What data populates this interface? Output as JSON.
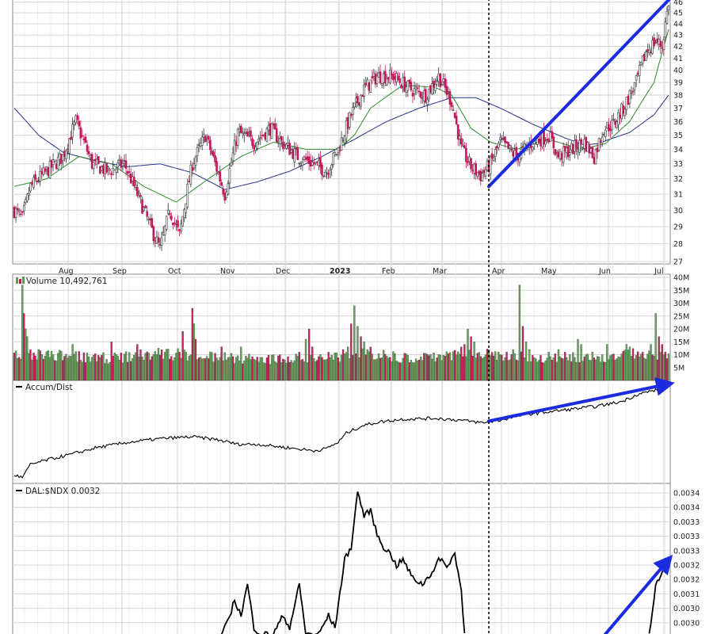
{
  "colors": {
    "up": "#5a9c4e",
    "down": "#c2185b",
    "volUp": "#6aa55d",
    "volDown": "#c8265f",
    "ma_short": "#2e8b2e",
    "ma_long": "#26338a",
    "arrow": "#1a2be0",
    "grid": "#d4d4d4",
    "bg": "#ffffff",
    "line": "#000000"
  },
  "chart_data": [
    {
      "type": "candlestick",
      "title": "",
      "x_labels": [
        "Aug",
        "Sep",
        "Oct",
        "Nov",
        "Dec",
        "2023",
        "Feb",
        "Mar",
        "Apr",
        "May",
        "Jun",
        "Jul"
      ],
      "y_ticks": [
        "46",
        "45",
        "44",
        "43",
        "42",
        "41",
        "40",
        "39",
        "38",
        "37",
        "36",
        "35",
        "34",
        "33",
        "32",
        "31",
        "30",
        "29",
        "28",
        "27"
      ],
      "y_scale": "log",
      "ylim": [
        27,
        46.2
      ],
      "close_anchors": [
        [
          0,
          30
        ],
        [
          5,
          29.5
        ],
        [
          10,
          31.5
        ],
        [
          20,
          32.5
        ],
        [
          30,
          33.5
        ],
        [
          38,
          36
        ],
        [
          48,
          33
        ],
        [
          58,
          32.5
        ],
        [
          68,
          33
        ],
        [
          74,
          31.5
        ],
        [
          80,
          30
        ],
        [
          84,
          29
        ],
        [
          90,
          27.7
        ],
        [
          96,
          30
        ],
        [
          102,
          28.5
        ],
        [
          110,
          33
        ],
        [
          118,
          35
        ],
        [
          124,
          33
        ],
        [
          130,
          31
        ],
        [
          138,
          35.2
        ],
        [
          148,
          34.5
        ],
        [
          158,
          35.5
        ],
        [
          165,
          34.5
        ],
        [
          175,
          33.5
        ],
        [
          185,
          33
        ],
        [
          193,
          32.5
        ],
        [
          200,
          34
        ],
        [
          208,
          36.5
        ],
        [
          216,
          38.5
        ],
        [
          224,
          39.5
        ],
        [
          234,
          39.5
        ],
        [
          244,
          38.5
        ],
        [
          254,
          38
        ],
        [
          262,
          39.5
        ],
        [
          270,
          37.5
        ],
        [
          276,
          34
        ],
        [
          282,
          32.8
        ],
        [
          288,
          32.2
        ],
        [
          294,
          33
        ],
        [
          300,
          34.5
        ],
        [
          310,
          33.5
        ],
        [
          320,
          34.5
        ],
        [
          330,
          35
        ],
        [
          336,
          33.5
        ],
        [
          344,
          34
        ],
        [
          352,
          34.5
        ],
        [
          358,
          33.5
        ],
        [
          364,
          35.5
        ],
        [
          370,
          35.8
        ],
        [
          376,
          37
        ],
        [
          384,
          39
        ],
        [
          390,
          41.5
        ],
        [
          396,
          42.5
        ],
        [
          400,
          42
        ],
        [
          404,
          46
        ]
      ],
      "ma_short_anchors": [
        [
          0,
          31.5
        ],
        [
          20,
          32
        ],
        [
          40,
          33.5
        ],
        [
          60,
          33
        ],
        [
          80,
          31.5
        ],
        [
          100,
          30.5
        ],
        [
          120,
          32
        ],
        [
          140,
          33.5
        ],
        [
          160,
          34.5
        ],
        [
          180,
          34
        ],
        [
          200,
          34
        ],
        [
          210,
          35
        ],
        [
          220,
          37
        ],
        [
          240,
          38.8
        ],
        [
          260,
          38.6
        ],
        [
          270,
          38
        ],
        [
          282,
          35.5
        ],
        [
          294,
          34.5
        ],
        [
          310,
          34
        ],
        [
          330,
          34.7
        ],
        [
          350,
          34
        ],
        [
          365,
          34.4
        ],
        [
          380,
          36
        ],
        [
          395,
          39
        ],
        [
          404,
          43.5
        ]
      ],
      "ma_long_anchors": [
        [
          0,
          37
        ],
        [
          15,
          35
        ],
        [
          30,
          33.8
        ],
        [
          50,
          33.2
        ],
        [
          70,
          32.8
        ],
        [
          90,
          33
        ],
        [
          110,
          32.4
        ],
        [
          130,
          31.3
        ],
        [
          150,
          31.8
        ],
        [
          170,
          32.5
        ],
        [
          190,
          33.5
        ],
        [
          210,
          34.7
        ],
        [
          230,
          36
        ],
        [
          250,
          37
        ],
        [
          270,
          37.8
        ],
        [
          285,
          37.8
        ],
        [
          300,
          37
        ],
        [
          320,
          35.8
        ],
        [
          340,
          34.8
        ],
        [
          352,
          34.3
        ],
        [
          360,
          34.4
        ],
        [
          380,
          35.2
        ],
        [
          395,
          36.5
        ],
        [
          404,
          38
        ]
      ],
      "arrow": {
        "from": [
          293,
          31.5
        ],
        "to": [
          404,
          46.2
        ]
      },
      "event_marker_bar": 293
    },
    {
      "type": "bar",
      "title": "Volume 10,492,761",
      "y_ticks": [
        "40M",
        "35M",
        "30M",
        "25M",
        "20M",
        "15M",
        "10M",
        "5M"
      ],
      "ylim": [
        0,
        40
      ],
      "base_anchors": [
        [
          0,
          10
        ],
        [
          30,
          9.5
        ],
        [
          60,
          8.5
        ],
        [
          90,
          10.5
        ],
        [
          120,
          9.5
        ],
        [
          150,
          8
        ],
        [
          180,
          8.5
        ],
        [
          200,
          9
        ],
        [
          215,
          11
        ],
        [
          240,
          8.5
        ],
        [
          270,
          9.5
        ],
        [
          290,
          10
        ],
        [
          310,
          9
        ],
        [
          330,
          8.5
        ],
        [
          360,
          9
        ],
        [
          380,
          10
        ],
        [
          404,
          9
        ]
      ],
      "spikes": {
        "5": 37,
        "6": 26,
        "7": 20,
        "8": 17,
        "15": 12,
        "36": 14,
        "60": 15,
        "76": 14,
        "104": 19,
        "106": 11,
        "110": 28,
        "111": 22,
        "112": 16,
        "128": 13,
        "140": 13,
        "160": 10,
        "176": 11,
        "180": 16,
        "182": 20,
        "184": 13,
        "203": 12,
        "206": 13,
        "208": 22,
        "210": 29,
        "212": 21,
        "214": 17,
        "216": 15,
        "218": 12,
        "276": 13,
        "278": 14,
        "280": 20,
        "282": 17,
        "284": 15,
        "296": 9.5,
        "300": 10,
        "304": 11,
        "308": 12,
        "312": 37,
        "314": 21,
        "316": 15,
        "318": 12,
        "330": 11,
        "336": 12,
        "340": 11,
        "348": 16,
        "350": 14,
        "366": 14,
        "378": 14,
        "380": 13,
        "393": 14,
        "396": 26,
        "398": 17,
        "400": 14,
        "402": 11
      },
      "down_bars": [
        0,
        3,
        6,
        12,
        18,
        25,
        30,
        31,
        40,
        44,
        50,
        54,
        60,
        61,
        66,
        72,
        78,
        84,
        90,
        91,
        96,
        102,
        104,
        110,
        114,
        120,
        128,
        135,
        141,
        147,
        150,
        156,
        164,
        170,
        176,
        178,
        182,
        184,
        188,
        194,
        200,
        203,
        209,
        214,
        220,
        226,
        232,
        238,
        244,
        250,
        255,
        261,
        266,
        272,
        276,
        278,
        282,
        283,
        288,
        296,
        304,
        310,
        314,
        320,
        326,
        332,
        338,
        344,
        352,
        358,
        364,
        370,
        376,
        382,
        388,
        394,
        398,
        402
      ]
    },
    {
      "type": "line",
      "title": "Accum/Dist",
      "anchors": [
        [
          0,
          0.05
        ],
        [
          5,
          0.02
        ],
        [
          10,
          0.16
        ],
        [
          20,
          0.21
        ],
        [
          35,
          0.27
        ],
        [
          50,
          0.34
        ],
        [
          70,
          0.4
        ],
        [
          90,
          0.44
        ],
        [
          110,
          0.46
        ],
        [
          125,
          0.43
        ],
        [
          138,
          0.38
        ],
        [
          150,
          0.38
        ],
        [
          170,
          0.34
        ],
        [
          185,
          0.31
        ],
        [
          192,
          0.33
        ],
        [
          200,
          0.4
        ],
        [
          205,
          0.5
        ],
        [
          215,
          0.58
        ],
        [
          225,
          0.62
        ],
        [
          240,
          0.65
        ],
        [
          260,
          0.66
        ],
        [
          275,
          0.64
        ],
        [
          290,
          0.61
        ],
        [
          300,
          0.64
        ],
        [
          315,
          0.7
        ],
        [
          330,
          0.73
        ],
        [
          345,
          0.76
        ],
        [
          360,
          0.79
        ],
        [
          375,
          0.84
        ],
        [
          385,
          0.92
        ],
        [
          395,
          0.96
        ],
        [
          404,
          1.0
        ]
      ],
      "arrow": {
        "from": [
          293,
          0.63
        ],
        "to": [
          404,
          1.03
        ]
      }
    },
    {
      "type": "line",
      "title": "DAL:$NDX 0.0032",
      "y_ticks": [
        "0.0034",
        "0.0034",
        "0.0033",
        "0.0033",
        "0.0033",
        "0.0032",
        "0.0032",
        "0.0031",
        "0.0030",
        "0.0030"
      ],
      "ylim": [
        0.00296,
        0.00342
      ],
      "anchors": [
        [
          128,
          0.00296
        ],
        [
          132,
          0.003
        ],
        [
          136,
          0.00307
        ],
        [
          140,
          0.00302
        ],
        [
          144,
          0.00312
        ],
        [
          148,
          0.00298
        ],
        [
          152,
          0.00296
        ],
        [
          160,
          0.00296
        ],
        [
          166,
          0.00302
        ],
        [
          170,
          0.00298
        ],
        [
          176,
          0.00312
        ],
        [
          180,
          0.00296
        ],
        [
          188,
          0.00296
        ],
        [
          194,
          0.00302
        ],
        [
          198,
          0.00298
        ],
        [
          204,
          0.0032
        ],
        [
          208,
          0.00324
        ],
        [
          212,
          0.00342
        ],
        [
          216,
          0.00334
        ],
        [
          220,
          0.00336
        ],
        [
          224,
          0.00328
        ],
        [
          228,
          0.00324
        ],
        [
          232,
          0.00322
        ],
        [
          236,
          0.00318
        ],
        [
          240,
          0.0032
        ],
        [
          246,
          0.00314
        ],
        [
          252,
          0.00312
        ],
        [
          258,
          0.00316
        ],
        [
          262,
          0.0032
        ],
        [
          268,
          0.00318
        ],
        [
          272,
          0.00322
        ],
        [
          276,
          0.0031
        ],
        [
          278,
          0.00296
        ],
        [
          392,
          0.00296
        ],
        [
          394,
          0.00304
        ],
        [
          396,
          0.00312
        ],
        [
          399,
          0.00314
        ],
        [
          402,
          0.00319
        ],
        [
          404,
          0.0032
        ]
      ],
      "arrow": {
        "from": [
          365,
          0.00296
        ],
        "to": [
          404,
          0.0032
        ]
      }
    }
  ]
}
